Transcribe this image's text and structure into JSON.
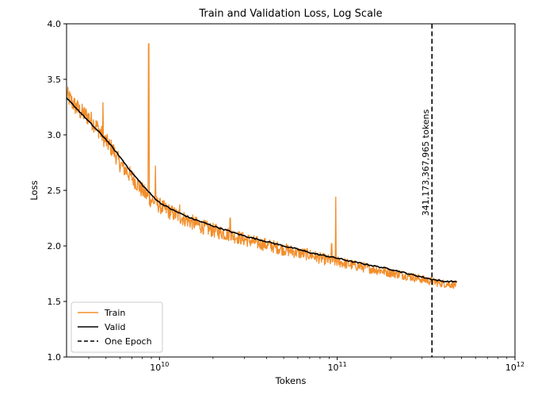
{
  "chart_data": {
    "type": "line",
    "title": "Train and Validation Loss, Log Scale",
    "xlabel": "Tokens",
    "ylabel": "Loss",
    "xscale": "log",
    "xlim": [
      3000000000.0,
      1000000000000.0
    ],
    "ylim": [
      1.0,
      4.0
    ],
    "xticks": [
      {
        "value": 10000000000.0,
        "base": "10",
        "exp": "10"
      },
      {
        "value": 100000000000.0,
        "base": "10",
        "exp": "11"
      },
      {
        "value": 1000000000000.0,
        "base": "10",
        "exp": "12"
      }
    ],
    "yticks": [
      {
        "value": 1.0,
        "label": "1.0"
      },
      {
        "value": 1.5,
        "label": "1.5"
      },
      {
        "value": 2.0,
        "label": "2.0"
      },
      {
        "value": 2.5,
        "label": "2.5"
      },
      {
        "value": 3.0,
        "label": "3.0"
      },
      {
        "value": 3.5,
        "label": "3.5"
      },
      {
        "value": 4.0,
        "label": "4.0"
      }
    ],
    "grid": false,
    "legend_position": "lower-left",
    "series": [
      {
        "name": "Train",
        "color": "#f28e2b",
        "style": "solid",
        "x": [
          3000000000.0,
          3500000000.0,
          4000000000.0,
          4500000000.0,
          5000000000.0,
          5500000000.0,
          6000000000.0,
          7000000000.0,
          8000000000.0,
          8700000000.0,
          9500000000.0,
          10500000000.0,
          12000000000.0,
          14000000000.0,
          17000000000.0,
          20000000000.0,
          25000000000.0,
          30000000000.0,
          35000000000.0,
          40000000000.0,
          50000000000.0,
          60000000000.0,
          70000000000.0,
          80000000000.0,
          90000000000.0,
          100000000000.0,
          120000000000.0,
          150000000000.0,
          200000000000.0,
          250000000000.0,
          300000000000.0,
          340000000000.0,
          400000000000.0,
          470000000000.0
        ],
        "values": [
          3.36,
          3.22,
          3.16,
          3.06,
          2.94,
          2.86,
          2.74,
          2.62,
          2.5,
          2.43,
          2.39,
          2.34,
          2.29,
          2.24,
          2.18,
          2.14,
          2.1,
          2.06,
          2.03,
          2.01,
          1.97,
          1.94,
          1.92,
          1.89,
          1.87,
          1.86,
          1.83,
          1.8,
          1.76,
          1.73,
          1.7,
          1.68,
          1.66,
          1.65
        ],
        "spikes": [
          {
            "x": 3450000000.0,
            "y": 3.31
          },
          {
            "x": 4800000000.0,
            "y": 3.29
          },
          {
            "x": 8700000000.0,
            "y": 3.82
          },
          {
            "x": 9500000000.0,
            "y": 2.72
          },
          {
            "x": 13000000000.0,
            "y": 2.37
          },
          {
            "x": 25000000000.0,
            "y": 2.25
          },
          {
            "x": 93000000000.0,
            "y": 2.02
          },
          {
            "x": 98000000000.0,
            "y": 2.44
          }
        ]
      },
      {
        "name": "Valid",
        "color": "#000000",
        "style": "solid",
        "x": [
          3000000000.0,
          3500000000.0,
          4000000000.0,
          5000000000.0,
          6000000000.0,
          7000000000.0,
          8000000000.0,
          9000000000.0,
          10000000000.0,
          12000000000.0,
          15000000000.0,
          20000000000.0,
          25000000000.0,
          30000000000.0,
          40000000000.0,
          50000000000.0,
          60000000000.0,
          70000000000.0,
          80000000000.0,
          100000000000.0,
          120000000000.0,
          150000000000.0,
          200000000000.0,
          250000000000.0,
          300000000000.0,
          340000000000.0,
          400000000000.0,
          470000000000.0
        ],
        "values": [
          3.33,
          3.22,
          3.12,
          2.96,
          2.8,
          2.66,
          2.55,
          2.46,
          2.39,
          2.32,
          2.25,
          2.18,
          2.13,
          2.09,
          2.04,
          2.0,
          1.97,
          1.94,
          1.92,
          1.89,
          1.86,
          1.83,
          1.79,
          1.75,
          1.72,
          1.7,
          1.68,
          1.68
        ]
      },
      {
        "name": "One Epoch",
        "color": "#000000",
        "style": "dashed",
        "x_value": 341173367965.0
      }
    ],
    "annotations": [
      {
        "text": "341,173,367,965 tokens",
        "x": 341173367965.0,
        "y": 2.75,
        "rotation": 90
      }
    ]
  }
}
